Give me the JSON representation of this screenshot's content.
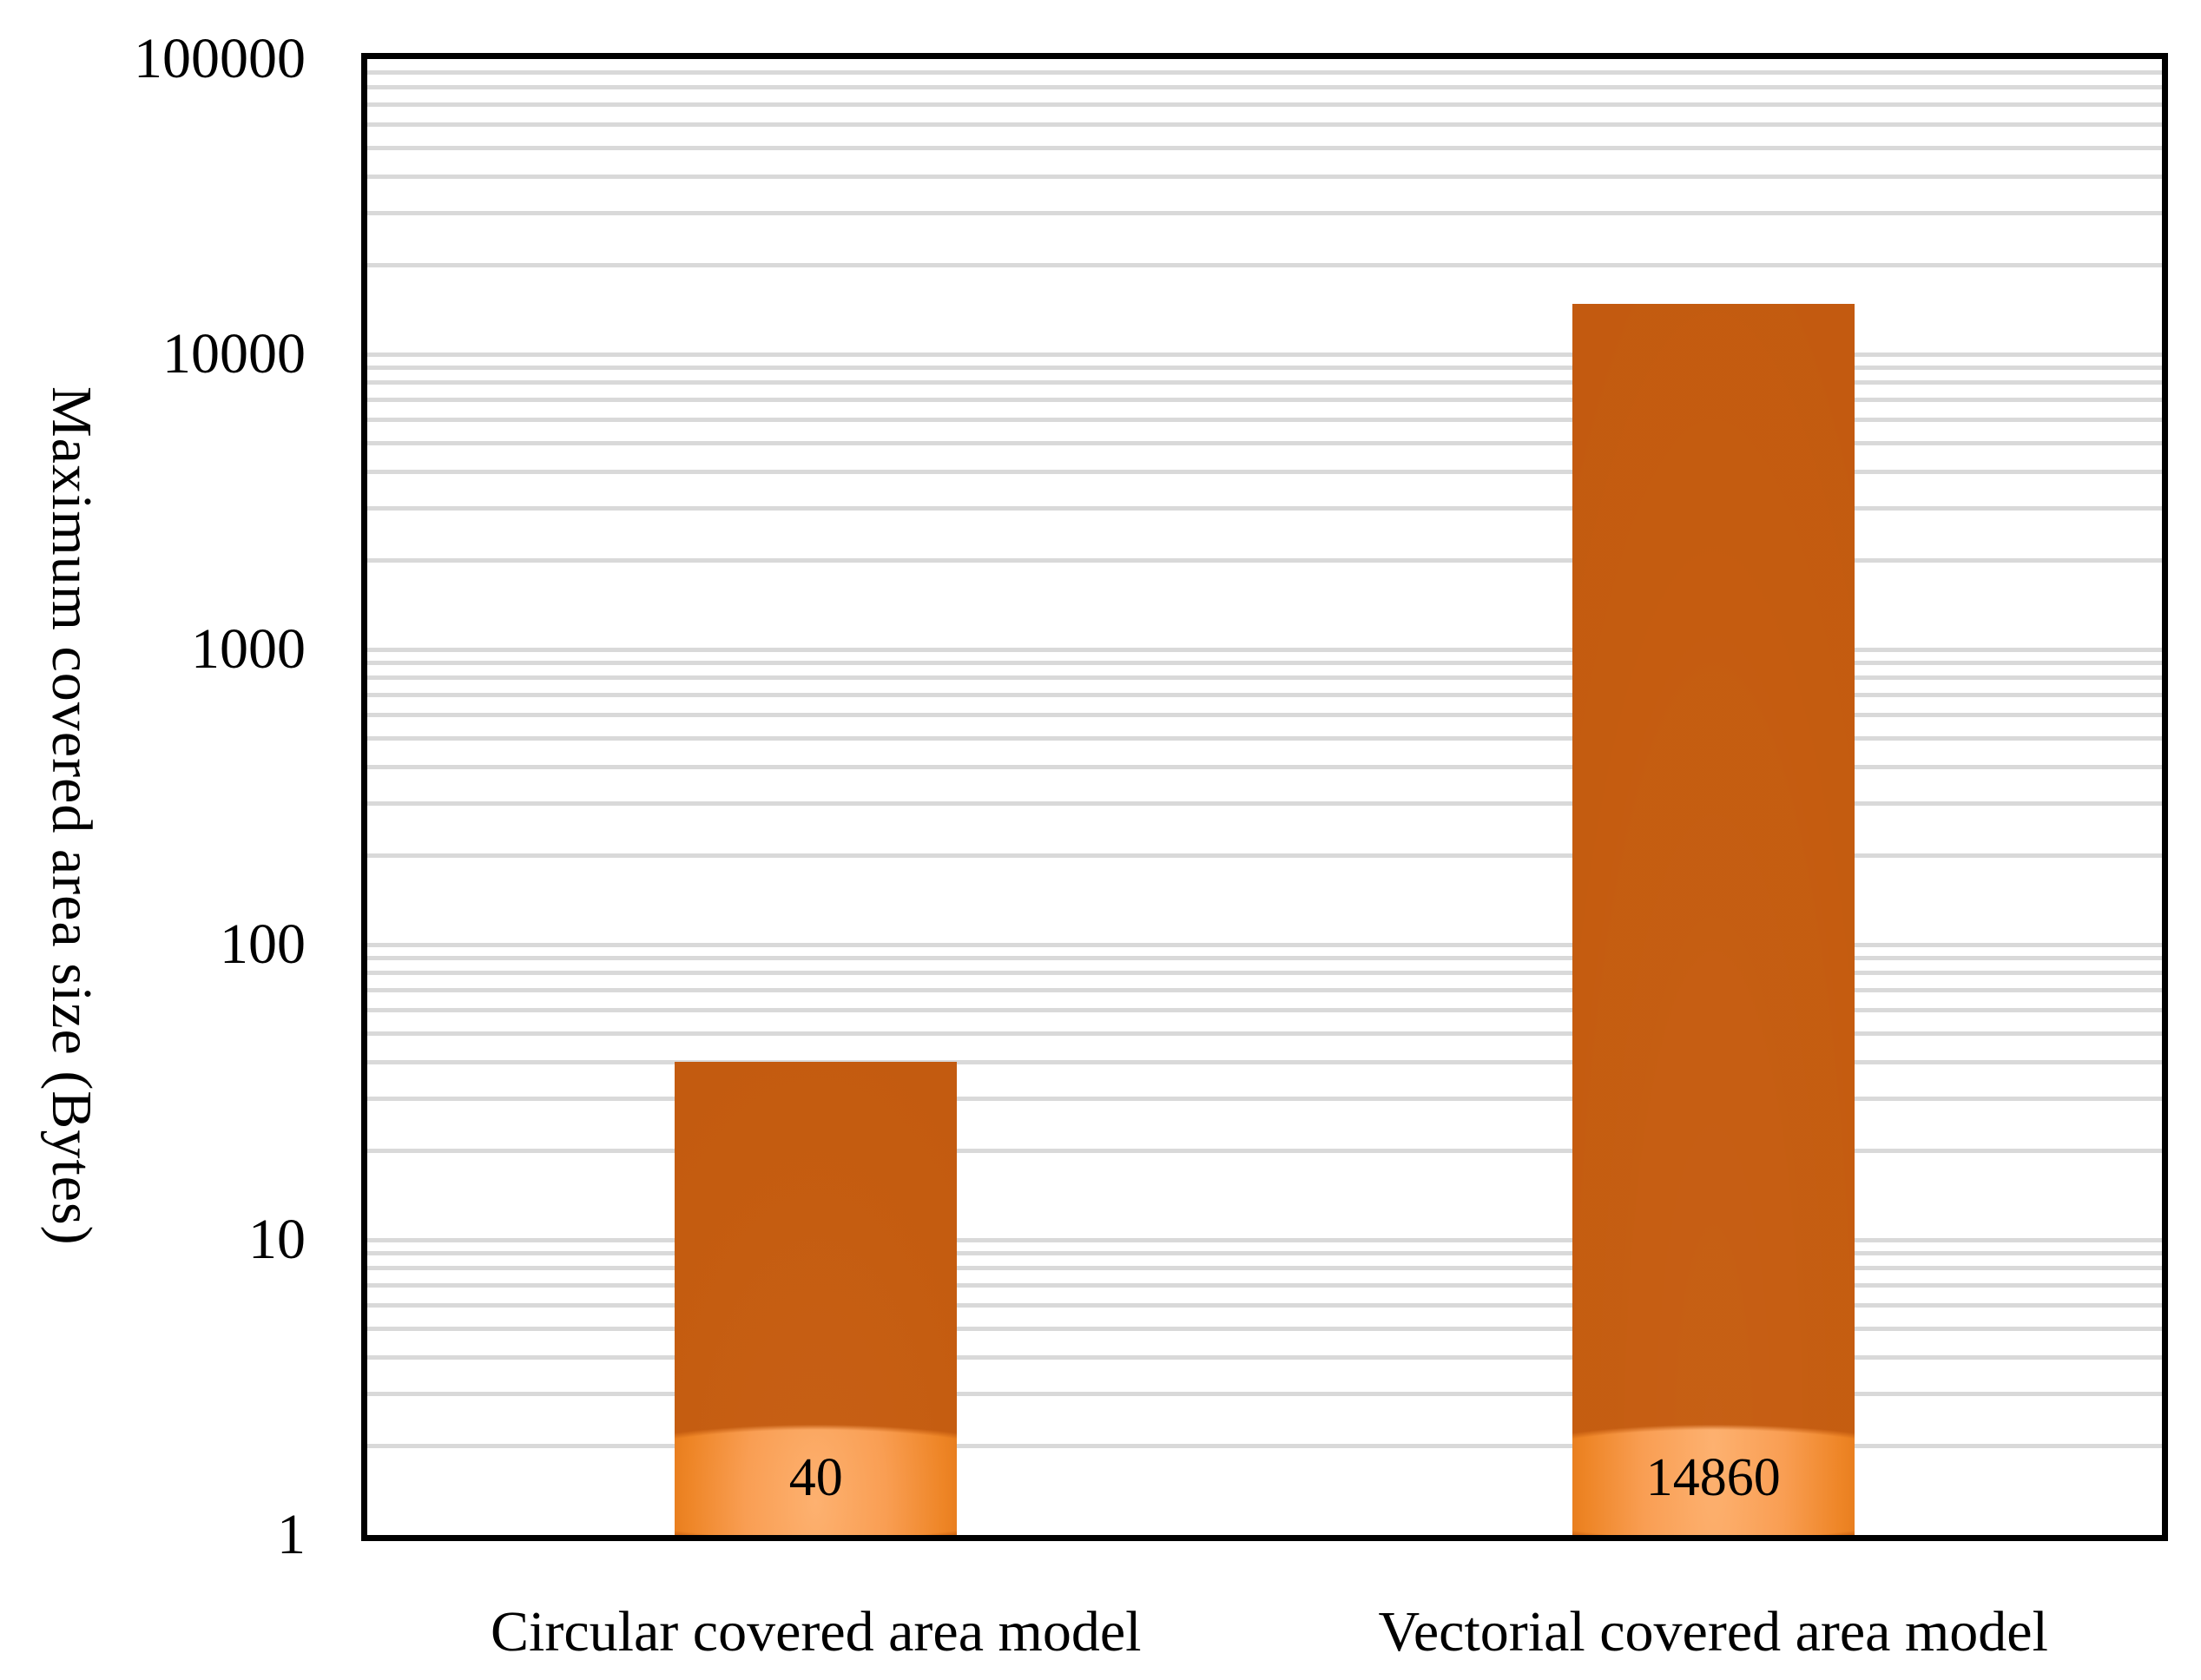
{
  "chart_data": {
    "type": "bar",
    "title": "",
    "categories": [
      "Circular covered area model",
      "Vectorial covered area model"
    ],
    "values": [
      40,
      14860
    ],
    "data_labels": [
      "40",
      "14860"
    ],
    "data_label_position": "inside-base",
    "xlabel": "",
    "ylabel": "Maximum covered area size (Bytes)",
    "yscale": "log",
    "ylim": [
      1,
      100000
    ],
    "ytick_labels": [
      "1",
      "10",
      "100",
      "1000",
      "10000",
      "100000"
    ],
    "ytick_values": [
      1,
      10,
      100,
      1000,
      10000,
      100000
    ],
    "grid": {
      "horizontal_log_minor": true,
      "vertical": false,
      "color": "#d9d9d9"
    },
    "legend": {
      "visible": false
    },
    "colors": {
      "bar_gradient_light": "#fdb170",
      "bar_gradient_mid": "#ee8526",
      "bar_gradient_dark": "#c4580a",
      "axis_line": "#000000",
      "text": "#000000",
      "background": "#ffffff"
    }
  }
}
